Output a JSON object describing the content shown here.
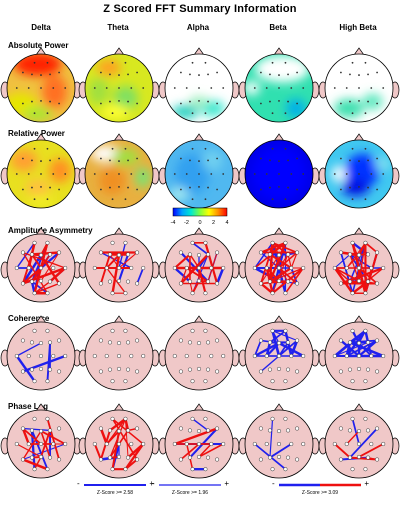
{
  "title": "Z Scored FFT Summary Information",
  "bands": [
    "Delta",
    "Theta",
    "Alpha",
    "Beta",
    "High Beta"
  ],
  "rows": [
    {
      "label": "Absolute Power",
      "type": "power"
    },
    {
      "label": "Relative Power",
      "type": "power"
    },
    {
      "label": "Amplitude Asymmetry",
      "type": "connect"
    },
    {
      "label": "Coherence",
      "type": "connect"
    },
    {
      "label": "Phase Lag",
      "type": "connect"
    }
  ],
  "colorbar": {
    "ticks": [
      "-4",
      "-2",
      "0",
      "2",
      "4"
    ],
    "colors": [
      "#0000ff",
      "#00a0ff",
      "#00e8d0",
      "#80ff40",
      "#ffff00",
      "#ff9000",
      "#ff0000"
    ]
  },
  "maps": {
    "absolute": [
      {
        "base": "#f0c040",
        "blobs": [
          [
            "#ff2000",
            0.45,
            0.15,
            0.35,
            0.17
          ],
          [
            "#ff7020",
            0.7,
            0.55,
            0.18,
            0.25
          ],
          [
            "#e6e600",
            0.2,
            0.75,
            0.25,
            0.18
          ],
          [
            "#a8e830",
            0.45,
            0.88,
            0.22,
            0.1
          ]
        ]
      },
      {
        "base": "#d8e820",
        "blobs": [
          [
            "#ffa020",
            0.35,
            0.2,
            0.18,
            0.12
          ],
          [
            "#a0e040",
            0.2,
            0.55,
            0.15,
            0.2
          ],
          [
            "#80e060",
            0.6,
            0.65,
            0.18,
            0.18
          ],
          [
            "#ffff30",
            0.45,
            0.85,
            0.2,
            0.1
          ]
        ]
      },
      {
        "base": "#ffffff",
        "blobs": [
          [
            "#20d0c0",
            0.3,
            0.85,
            0.2,
            0.1
          ],
          [
            "#40e8d0",
            0.7,
            0.8,
            0.18,
            0.12
          ],
          [
            "#a0f0c0",
            0.5,
            0.7,
            0.15,
            0.08
          ]
        ]
      },
      {
        "base": "#30e0b0",
        "blobs": [
          [
            "#ffffff",
            0.55,
            0.22,
            0.4,
            0.2
          ],
          [
            "#00b0e8",
            0.75,
            0.8,
            0.15,
            0.14
          ],
          [
            "#ffffff",
            0.1,
            0.5,
            0.12,
            0.1
          ]
        ]
      },
      {
        "base": "#ffffff",
        "blobs": [
          [
            "#40e0b0",
            0.35,
            0.8,
            0.22,
            0.14
          ],
          [
            "#60e8c0",
            0.7,
            0.7,
            0.15,
            0.12
          ]
        ]
      }
    ],
    "relative": [
      {
        "base": "#e8e020",
        "blobs": [
          [
            "#ffa030",
            0.25,
            0.3,
            0.2,
            0.16
          ],
          [
            "#ff9020",
            0.78,
            0.45,
            0.16,
            0.18
          ],
          [
            "#ffc040",
            0.45,
            0.7,
            0.18,
            0.12
          ],
          [
            "#f0f020",
            0.5,
            0.9,
            0.2,
            0.08
          ]
        ]
      },
      {
        "base": "#e8b040",
        "blobs": [
          [
            "#ffffff",
            0.3,
            0.2,
            0.22,
            0.12
          ],
          [
            "#a0e040",
            0.6,
            0.25,
            0.2,
            0.12
          ],
          [
            "#f09020",
            0.4,
            0.6,
            0.2,
            0.2
          ],
          [
            "#80e070",
            0.85,
            0.55,
            0.12,
            0.15
          ]
        ]
      },
      {
        "base": "#50b8f0",
        "blobs": [
          [
            "#30a0f0",
            0.4,
            0.5,
            0.25,
            0.3
          ],
          [
            "#70d0f0",
            0.7,
            0.3,
            0.15,
            0.15
          ],
          [
            "#a0e8f0",
            0.2,
            0.8,
            0.15,
            0.1
          ]
        ]
      },
      {
        "base": "#0000e8",
        "blobs": [
          [
            "#0000ff",
            0.5,
            0.5,
            0.4,
            0.4
          ]
        ]
      },
      {
        "base": "#40c8f0",
        "blobs": [
          [
            "#0030ff",
            0.55,
            0.45,
            0.25,
            0.25
          ],
          [
            "#0010e0",
            0.45,
            0.7,
            0.2,
            0.12
          ],
          [
            "#ffffff",
            0.2,
            0.5,
            0.1,
            0.12
          ],
          [
            "#80e0f0",
            0.85,
            0.35,
            0.12,
            0.1
          ]
        ]
      }
    ]
  },
  "links": {
    "asym": [
      {
        "red": 22,
        "blue": 12,
        "seed": 3
      },
      {
        "red": 10,
        "blue": 5,
        "seed": 7
      },
      {
        "red": 18,
        "blue": 10,
        "seed": 11
      },
      {
        "red": 34,
        "blue": 14,
        "seed": 13
      },
      {
        "red": 34,
        "blue": 12,
        "seed": 17
      }
    ],
    "coh": [
      {
        "red": 0,
        "blue": 5,
        "seed": 19
      },
      {
        "red": 0,
        "blue": 0,
        "seed": 23
      },
      {
        "red": 0,
        "blue": 0,
        "seed": 29
      },
      {
        "red": 0,
        "blue": 26,
        "seed": 31,
        "frontal": true
      },
      {
        "red": 0,
        "blue": 26,
        "seed": 37,
        "frontal": true
      }
    ],
    "phase": [
      {
        "red": 14,
        "blue": 5,
        "seed": 41
      },
      {
        "red": 20,
        "blue": 3,
        "seed": 43
      },
      {
        "red": 6,
        "blue": 4,
        "seed": 47
      },
      {
        "red": 0,
        "blue": 3,
        "seed": 53
      },
      {
        "red": 5,
        "blue": 3,
        "seed": 59
      }
    ]
  },
  "legends": [
    {
      "label": "Z-Score >= 1.96",
      "minus": "-",
      "plus": "+"
    },
    {
      "label": "Z-Score >= 2.58",
      "minus": "-",
      "plus": "+"
    },
    {
      "label": "Z-Score >= 3.09",
      "minus": "-",
      "plus": "+"
    }
  ],
  "colors": {
    "scalp": "#f0c8c8",
    "lineRed": "#ee1010",
    "lineBlue": "#2020ee"
  }
}
